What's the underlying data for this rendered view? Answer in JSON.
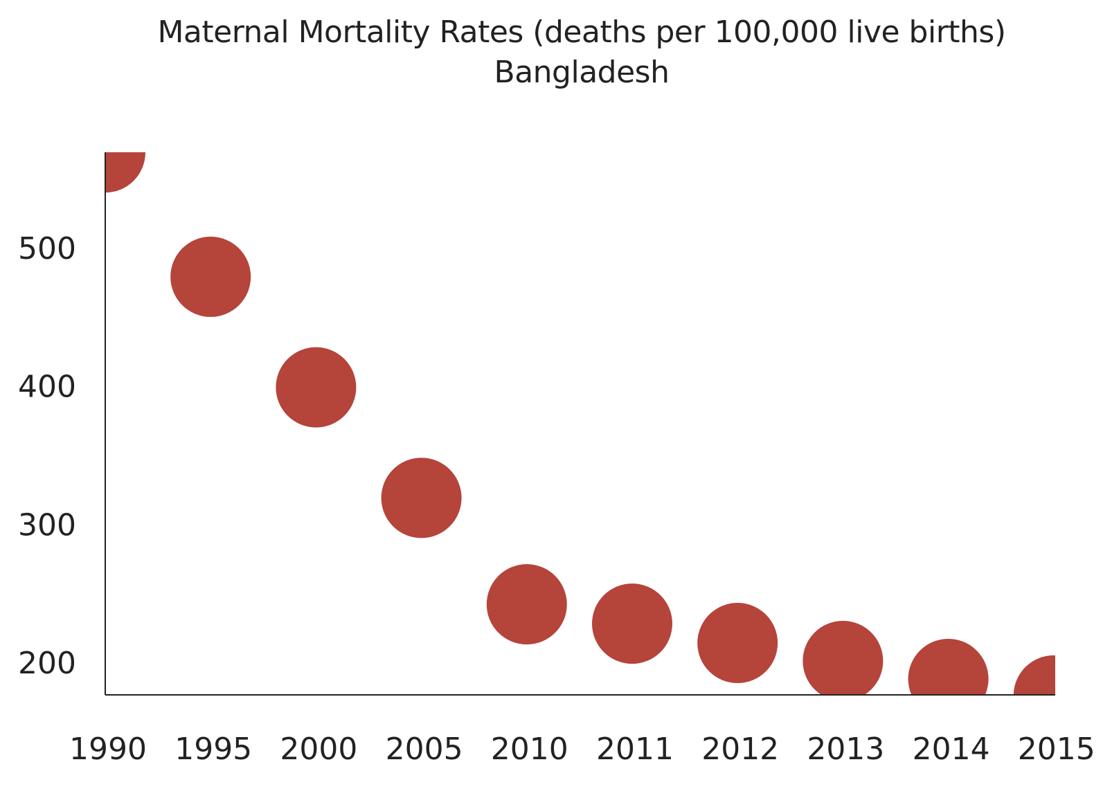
{
  "chart_data": {
    "type": "scatter",
    "title": "Maternal Mortality Rates (deaths per 100,000 live births)",
    "subtitle": "Bangladesh",
    "xlabel": "",
    "ylabel": "",
    "categories": [
      "1990",
      "1995",
      "2000",
      "2005",
      "2010",
      "2011",
      "2012",
      "2013",
      "2014",
      "2015"
    ],
    "values": [
      569,
      479,
      399,
      319,
      242,
      228,
      214,
      201,
      188,
      176
    ],
    "y_ticks": [
      200,
      300,
      400,
      500
    ],
    "ylim": [
      176,
      569
    ],
    "marker_color": "#b5443a",
    "grid": false,
    "legend": "none"
  }
}
